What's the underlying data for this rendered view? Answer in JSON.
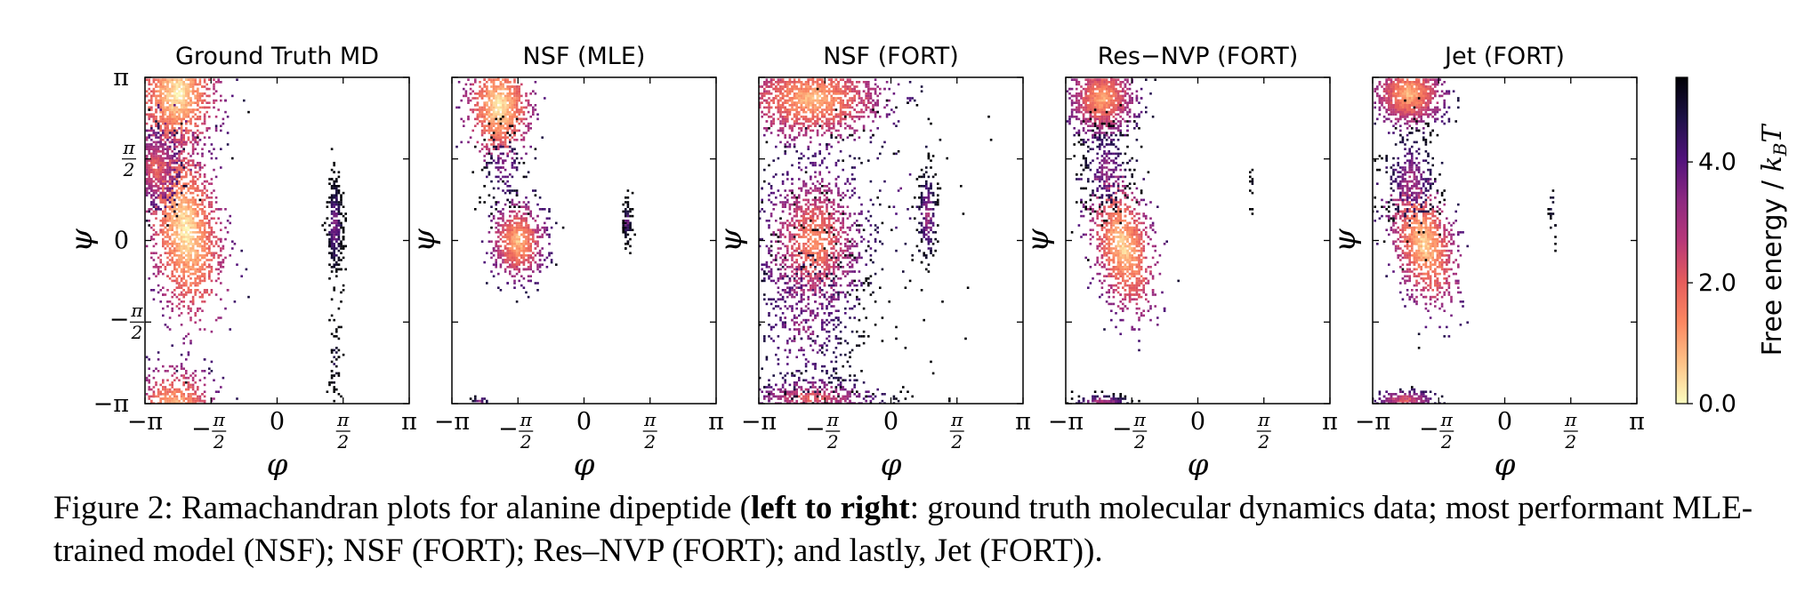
{
  "figure": {
    "caption_label": "Figure 2:",
    "caption_pre": "Ramachandran plots for alanine dipeptide (",
    "caption_bold": "left to right",
    "caption_post": ": ground truth molecular dynamics data; most performant MLE-trained model (NSF); NSF (FORT); Res–NVP (FORT); and lastly, Jet (FORT))."
  },
  "chart_data": {
    "type": "heatmap",
    "xlabel": "φ",
    "ylabel": "ψ",
    "xlim": [
      -3.1416,
      3.1416
    ],
    "ylim": [
      -3.1416,
      3.1416
    ],
    "x_tick_labels": [
      "−π",
      "−π/2",
      "0",
      "π/2",
      "π"
    ],
    "y_tick_labels": [
      "−π",
      "−π/2",
      "0",
      "π/2",
      "π"
    ],
    "colorbar": {
      "label": "Free energy / k_B T",
      "label_text": "Free energy / ",
      "label_var": "k",
      "label_sub": "B",
      "label_var2": "T",
      "range": [
        0.0,
        5.4
      ],
      "tick_values": [
        0.0,
        2.0,
        4.0
      ],
      "tick_labels": [
        "0.0",
        "2.0",
        "4.0"
      ],
      "colors": [
        "#fcfdbf",
        "#fec287",
        "#fb8761",
        "#e55c5c",
        "#b73779",
        "#8c2981",
        "#51127c",
        "#1d1147",
        "#000004"
      ]
    },
    "panels": [
      {
        "title": "Ground Truth MD",
        "seed": 11,
        "clusters": [
          {
            "phi": -2.4,
            "psi": 2.85,
            "sphi": 0.45,
            "spsi": 0.55,
            "n": 1400,
            "fmin": 0.0
          },
          {
            "phi": -2.45,
            "psi": -3.25,
            "sphi": 0.45,
            "spsi": 0.4,
            "n": 700,
            "fmin": 0.3
          },
          {
            "phi": -2.2,
            "psi": 0.2,
            "sphi": 0.42,
            "spsi": 0.8,
            "n": 1600,
            "fmin": 0.0,
            "tilt": -0.55
          },
          {
            "phi": -2.9,
            "psi": 1.4,
            "sphi": 0.3,
            "spsi": 0.4,
            "n": 500,
            "fmin": 1.6
          },
          {
            "phi": 1.35,
            "psi": 0.3,
            "sphi": 0.1,
            "spsi": 0.55,
            "n": 260,
            "fmin": 3.2
          },
          {
            "phi": 1.35,
            "psi": -2.3,
            "sphi": 0.08,
            "spsi": 0.7,
            "n": 60,
            "fmin": 4.4
          }
        ]
      },
      {
        "title": "NSF (MLE)",
        "seed": 23,
        "clusters": [
          {
            "phi": -2.05,
            "psi": 2.6,
            "sphi": 0.35,
            "spsi": 0.45,
            "n": 900,
            "fmin": 0.0
          },
          {
            "phi": -1.6,
            "psi": 0.0,
            "sphi": 0.3,
            "spsi": 0.35,
            "n": 700,
            "fmin": 0.5
          },
          {
            "phi": -1.95,
            "psi": 1.4,
            "sphi": 0.3,
            "spsi": 0.5,
            "n": 120,
            "fmin": 3.2
          },
          {
            "phi": 1.0,
            "psi": 0.35,
            "sphi": 0.06,
            "spsi": 0.25,
            "n": 80,
            "fmin": 3.6
          },
          {
            "phi": -2.5,
            "psi": -3.1,
            "sphi": 0.15,
            "spsi": 0.08,
            "n": 25,
            "fmin": 3.0
          }
        ]
      },
      {
        "title": "NSF (FORT)",
        "seed": 37,
        "clusters": [
          {
            "phi": -1.9,
            "psi": 2.75,
            "sphi": 0.85,
            "spsi": 0.4,
            "n": 1500,
            "fmin": 0.6
          },
          {
            "phi": -1.9,
            "psi": -3.0,
            "sphi": 0.85,
            "spsi": 0.2,
            "n": 500,
            "fmin": 1.8
          },
          {
            "phi": -1.85,
            "psi": 0.0,
            "sphi": 0.6,
            "spsi": 0.75,
            "n": 1300,
            "fmin": 1.2
          },
          {
            "phi": -2.1,
            "psi": -1.6,
            "sphi": 0.8,
            "spsi": 1.0,
            "n": 450,
            "fmin": 3.0
          },
          {
            "phi": 0.85,
            "psi": 0.5,
            "sphi": 0.12,
            "spsi": 0.5,
            "n": 180,
            "fmin": 2.8
          },
          {
            "phi": 0.1,
            "psi": 1.0,
            "sphi": 1.0,
            "spsi": 1.6,
            "n": 80,
            "fmin": 3.8
          }
        ]
      },
      {
        "title": "Res−NVP (FORT)",
        "seed": 41,
        "clusters": [
          {
            "phi": -2.3,
            "psi": 2.75,
            "sphi": 0.4,
            "spsi": 0.35,
            "n": 1000,
            "fmin": 0.8
          },
          {
            "phi": -1.8,
            "psi": -0.1,
            "sphi": 0.38,
            "spsi": 0.6,
            "n": 1000,
            "fmin": 0.3,
            "tilt": -0.6
          },
          {
            "phi": -2.2,
            "psi": 1.4,
            "sphi": 0.35,
            "spsi": 0.5,
            "n": 250,
            "fmin": 3.0
          },
          {
            "phi": -2.3,
            "psi": -3.1,
            "sphi": 0.35,
            "spsi": 0.08,
            "n": 150,
            "fmin": 2.4
          },
          {
            "phi": 1.25,
            "psi": 0.9,
            "sphi": 0.03,
            "spsi": 0.25,
            "n": 12,
            "fmin": 3.8
          }
        ]
      },
      {
        "title": "Jet (FORT)",
        "seed": 53,
        "clusters": [
          {
            "phi": -2.3,
            "psi": 2.85,
            "sphi": 0.4,
            "spsi": 0.3,
            "n": 1000,
            "fmin": 0.6
          },
          {
            "phi": -1.95,
            "psi": -0.05,
            "sphi": 0.38,
            "spsi": 0.55,
            "n": 1000,
            "fmin": 0.3,
            "tilt": -0.55
          },
          {
            "phi": -2.25,
            "psi": 1.2,
            "sphi": 0.35,
            "spsi": 0.55,
            "n": 300,
            "fmin": 2.8
          },
          {
            "phi": -2.4,
            "psi": -3.05,
            "sphi": 0.4,
            "spsi": 0.1,
            "n": 200,
            "fmin": 1.8
          },
          {
            "phi": 1.1,
            "psi": 0.4,
            "sphi": 0.05,
            "spsi": 0.5,
            "n": 18,
            "fmin": 3.8
          }
        ]
      }
    ]
  }
}
